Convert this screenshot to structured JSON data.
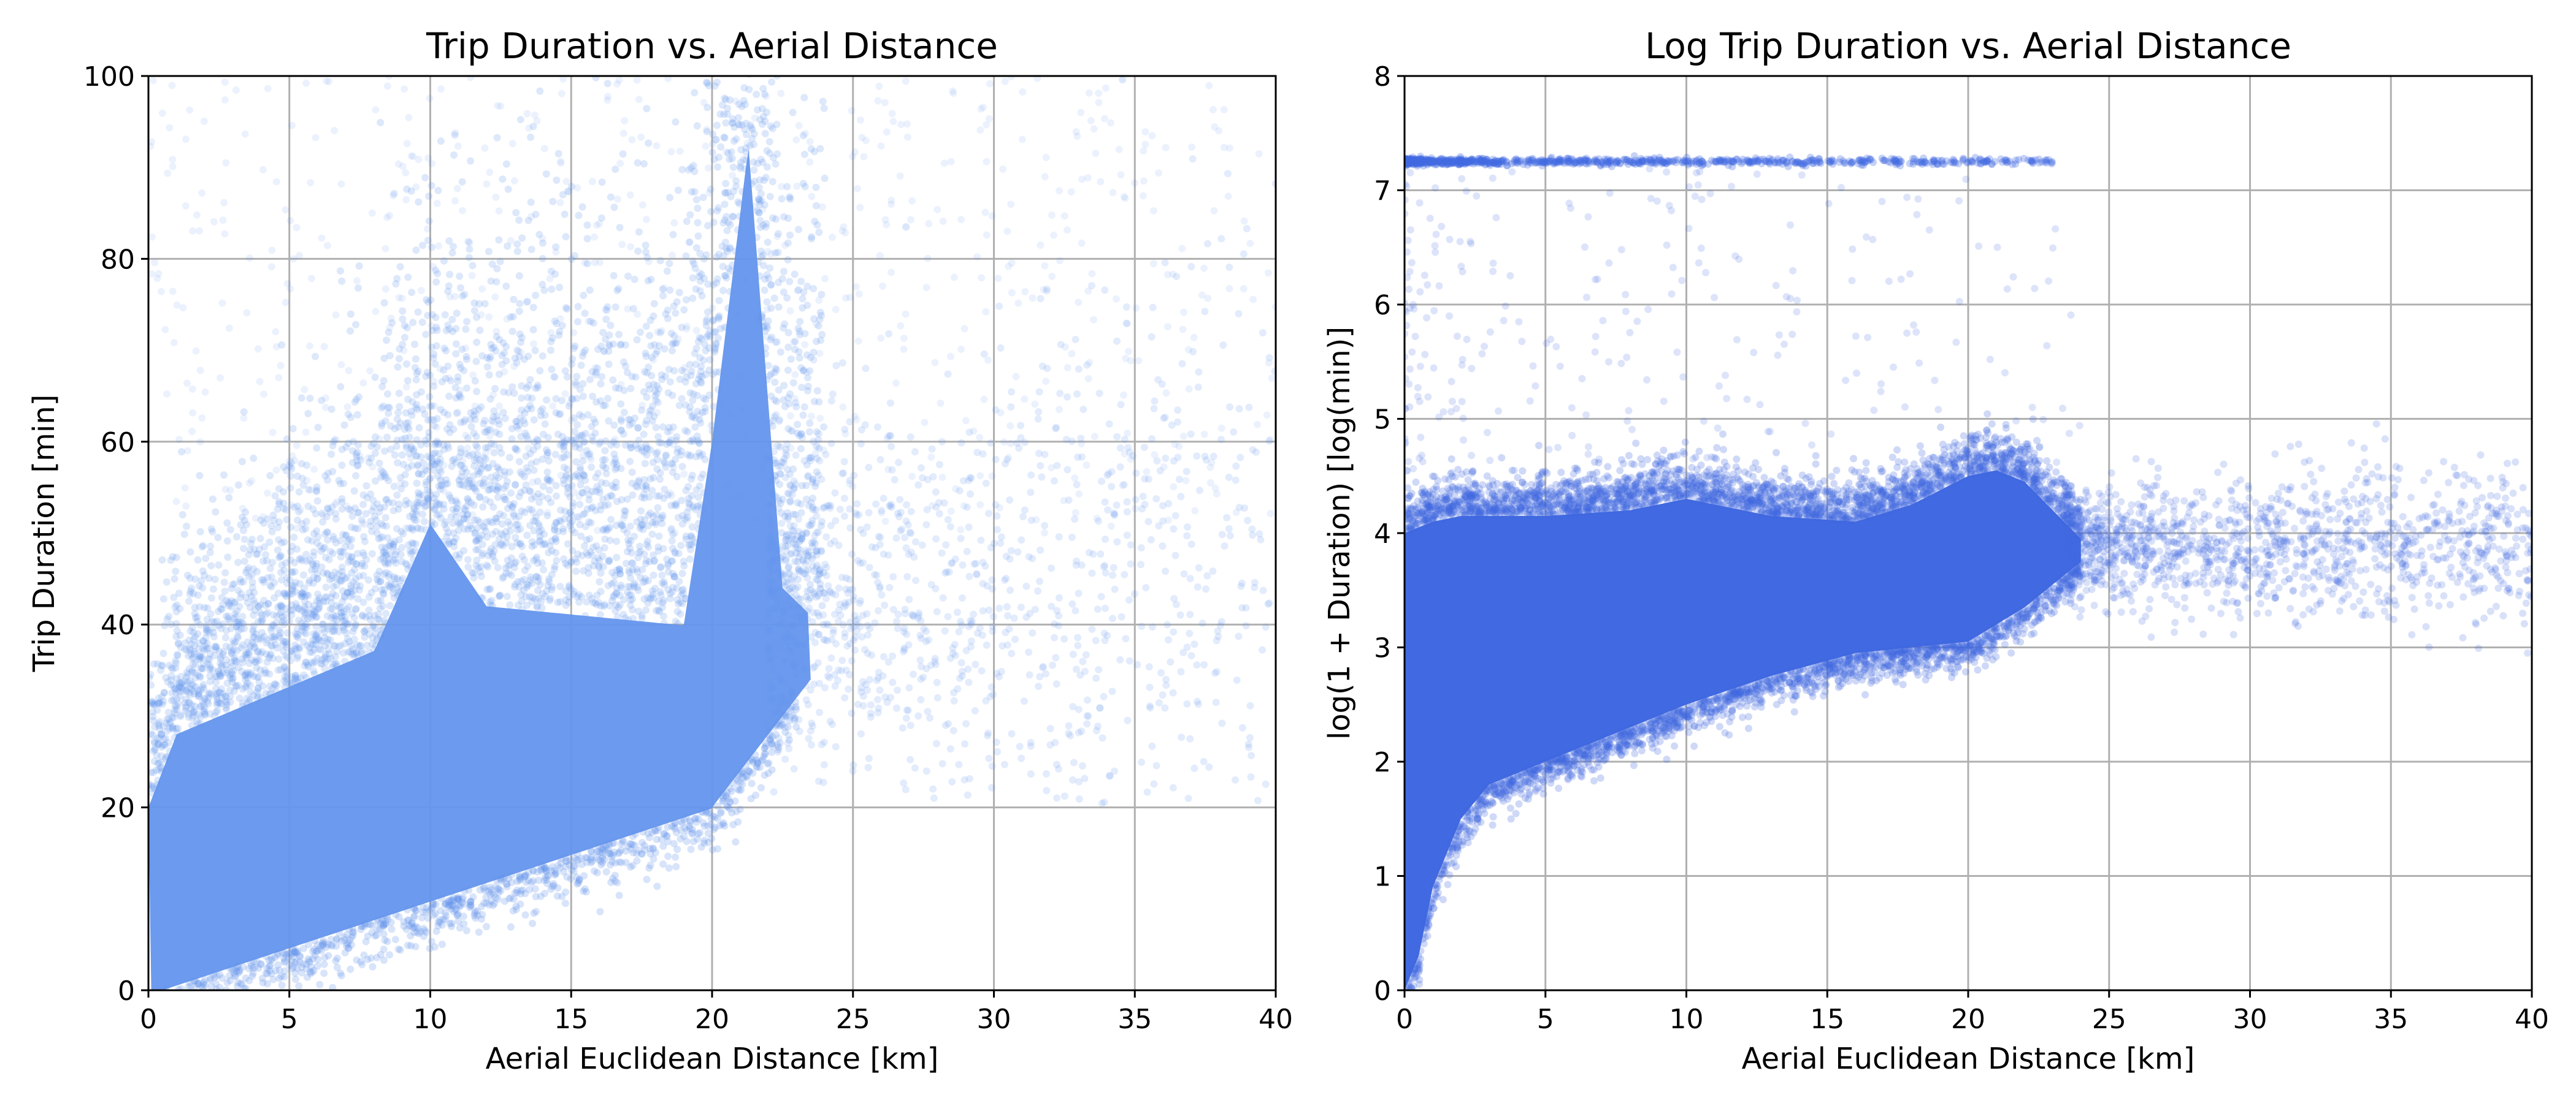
{
  "chart_data": [
    {
      "type": "scatter",
      "title": "Trip Duration vs. Aerial Distance",
      "xlabel": "Aerial Euclidean Distance [km]",
      "ylabel": "Trip Duration [min]",
      "xlim": [
        0,
        40
      ],
      "ylim": [
        0,
        100
      ],
      "x_ticks": [
        "0",
        "5",
        "10",
        "15",
        "20",
        "25",
        "30",
        "35",
        "40"
      ],
      "y_ticks": [
        "0",
        "20",
        "40",
        "60",
        "80",
        "100"
      ],
      "grid": true,
      "color": "#6495ED",
      "point_alpha": 0.15,
      "density_bands": [
        {
          "x_from": 0,
          "x_to": 10,
          "lower": [
            0,
            0,
            0
          ],
          "upper": [
            30,
            42,
            58
          ]
        },
        {
          "x_from": 10,
          "x_to": 20,
          "lower": [
            7,
            13,
            20
          ],
          "upper": [
            48,
            42,
            90
          ]
        },
        {
          "x_from": 20,
          "x_to": 24,
          "lower": [
            20,
            36
          ],
          "upper": [
            100,
            44
          ]
        }
      ],
      "description_points": [
        {
          "x": 1,
          "y": 20
        },
        {
          "x": 5,
          "y": 30
        },
        {
          "x": 9,
          "y": 55
        },
        {
          "x": 10,
          "y": 45
        },
        {
          "x": 15,
          "y": 35
        },
        {
          "x": 20,
          "y": 60
        },
        {
          "x": 21,
          "y": 95
        },
        {
          "x": 22,
          "y": 40
        },
        {
          "x": 25,
          "y": 40
        },
        {
          "x": 30,
          "y": 45
        },
        {
          "x": 35,
          "y": 45
        }
      ]
    },
    {
      "type": "scatter",
      "title": "Log Trip Duration vs. Aerial Distance",
      "xlabel": "Aerial Euclidean Distance [km]",
      "ylabel": "log(1 + Duration) [log(min)]",
      "xlim": [
        0,
        40
      ],
      "ylim": [
        0,
        8
      ],
      "x_ticks": [
        "0",
        "5",
        "10",
        "15",
        "20",
        "25",
        "30",
        "35",
        "40"
      ],
      "y_ticks": [
        "0",
        "1",
        "2",
        "3",
        "4",
        "5",
        "6",
        "7",
        "8"
      ],
      "grid": true,
      "color": "#4169E1",
      "point_alpha": 0.15,
      "saturated_band": {
        "x": [
          0,
          0.5,
          1,
          2,
          3,
          5,
          8,
          10,
          13,
          16,
          18,
          20,
          21,
          22,
          23,
          24
        ],
        "lower": [
          0,
          0.3,
          0.9,
          1.5,
          1.8,
          2.0,
          2.3,
          2.5,
          2.75,
          2.95,
          3.0,
          3.05,
          3.2,
          3.35,
          3.55,
          3.75
        ],
        "upper": [
          4.0,
          4.05,
          4.1,
          4.15,
          4.15,
          4.15,
          4.2,
          4.3,
          4.15,
          4.1,
          4.25,
          4.5,
          4.55,
          4.45,
          4.2,
          3.95
        ]
      },
      "ceiling_line": {
        "y": 7.25,
        "x_from": 0,
        "x_to": 23
      },
      "sparse_tail": {
        "x_from": 24,
        "x_to": 40,
        "y_center": 3.9,
        "y_spread": 0.35
      }
    }
  ]
}
